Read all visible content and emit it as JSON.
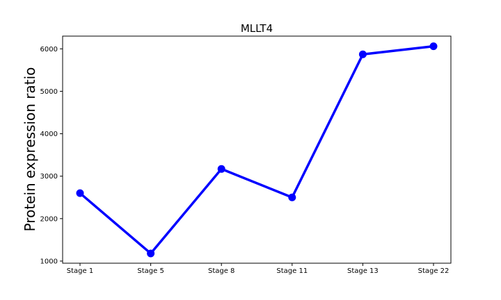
{
  "chart_data": {
    "type": "line",
    "title": "MLLT4",
    "xlabel": "",
    "ylabel": "Protein expression ratio",
    "categories": [
      "Stage 1",
      "Stage 5",
      "Stage 8",
      "Stage 11",
      "Stage 13",
      "Stage 22"
    ],
    "series": [
      {
        "values": [
          2600,
          1180,
          3170,
          2500,
          5870,
          6060
        ],
        "color": "#0000ff"
      }
    ],
    "ylim": [
      950,
      6300
    ],
    "yticks": [
      1000,
      2000,
      3000,
      4000,
      5000,
      6000
    ],
    "grid": false,
    "legend": "none"
  }
}
